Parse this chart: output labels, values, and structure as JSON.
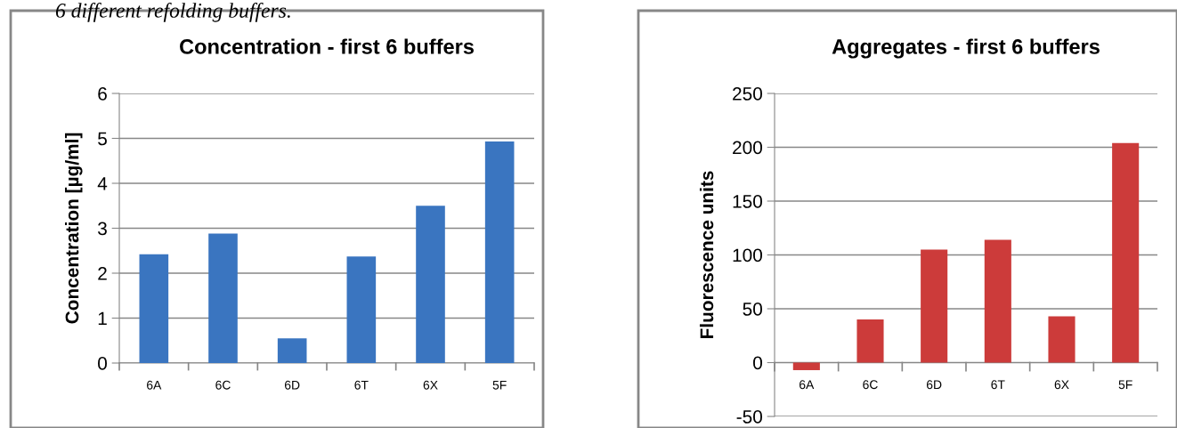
{
  "chart_data": [
    {
      "type": "bar",
      "title": "Concentration - first 6 buffers",
      "ylabel": "Concentration [µg/ml]",
      "annotations": [
        "6 different refolding buffers."
      ],
      "categories": [
        "6A",
        "6C",
        "6D",
        "6T",
        "6X",
        "5F"
      ],
      "values": [
        2.42,
        2.88,
        0.55,
        2.37,
        3.5,
        4.93
      ],
      "color": "#3a75c0",
      "ylim": [
        0,
        6
      ],
      "yticks": [
        0,
        1,
        2,
        3,
        4,
        5,
        6
      ],
      "grid": "y"
    },
    {
      "type": "bar",
      "title": "Aggregates - first 6 buffers",
      "ylabel": "Fluorescence units",
      "categories": [
        "6A",
        "6C",
        "6D",
        "6T",
        "6X",
        "5F"
      ],
      "values": [
        -7,
        40,
        105,
        114,
        43,
        204
      ],
      "color": "#cc3b3a",
      "ylim": [
        -50,
        250
      ],
      "yticks": [
        -50,
        0,
        50,
        100,
        150,
        200,
        250
      ],
      "grid": "y"
    }
  ]
}
